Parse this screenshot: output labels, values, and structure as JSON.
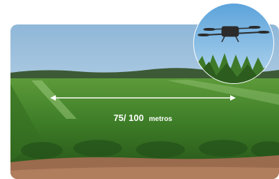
{
  "distance_label": {
    "value": "75/ 100",
    "unit": "metros"
  }
}
